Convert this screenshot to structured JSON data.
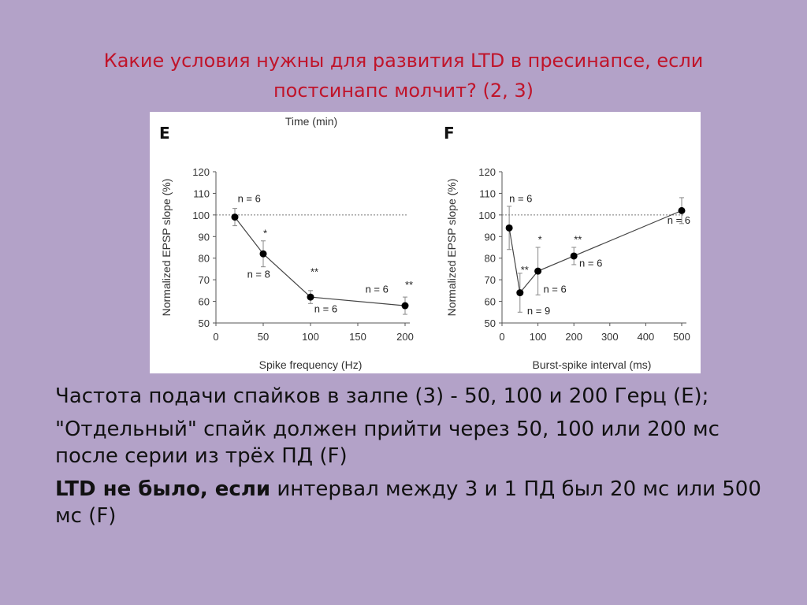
{
  "slide": {
    "title_line1": "Какие условия нужны для развития LTD в пресинапсе, если",
    "title_line2": "постсинапс молчит? (2, 3)",
    "paragraphs": [
      {
        "bold": "",
        "text": "Частота подачи спайков в залпе (3) - 50, 100 и 200 Герц (Е);"
      },
      {
        "bold": "",
        "text": "\"Отдельный\" спайк должен прийти через 50, 100 или 200 мс после серии из трёх ПД (F)"
      },
      {
        "bold": "LTD не было, если",
        "text": " интервал между 3 и 1 ПД был 20 мс или 500 мс (F)"
      }
    ],
    "title_color": "#c0142a",
    "background_color": "#b3a2c8"
  },
  "chart_data": [
    {
      "panel": "E",
      "type": "line",
      "top_label": "Time (min)",
      "xlabel": "Spike frequency (Hz)",
      "ylabel": "Normalized EPSP slope (%)",
      "xlim": [
        0,
        200
      ],
      "ylim": [
        50,
        120
      ],
      "xticks": [
        0,
        50,
        100,
        150,
        200
      ],
      "yticks": [
        50,
        60,
        70,
        80,
        90,
        100,
        110,
        120
      ],
      "reference_line": 100,
      "points": [
        {
          "x": 20,
          "y": 99,
          "err": 4
        },
        {
          "x": 50,
          "y": 82,
          "err": 6
        },
        {
          "x": 100,
          "y": 62,
          "err": 3
        },
        {
          "x": 200,
          "y": 58,
          "err": 4
        }
      ],
      "annotations": [
        {
          "text": "n = 6",
          "x": 23,
          "y": 106
        },
        {
          "text": "*",
          "x": 50,
          "y": 90
        },
        {
          "text": "n = 8",
          "x": 33,
          "y": 71
        },
        {
          "text": "**",
          "x": 100,
          "y": 72
        },
        {
          "text": "n = 6",
          "x": 104,
          "y": 55
        },
        {
          "text": "n = 6",
          "x": 158,
          "y": 64
        },
        {
          "text": "**",
          "x": 200,
          "y": 66
        }
      ]
    },
    {
      "panel": "F",
      "type": "line",
      "xlabel": "Burst-spike interval (ms)",
      "ylabel": "Normalized EPSP slope (%)",
      "xlim": [
        0,
        500
      ],
      "ylim": [
        50,
        120
      ],
      "xticks": [
        0,
        100,
        200,
        300,
        400,
        500
      ],
      "yticks": [
        50,
        60,
        70,
        80,
        90,
        100,
        110,
        120
      ],
      "reference_line": 100,
      "points": [
        {
          "x": 20,
          "y": 94,
          "err": 10
        },
        {
          "x": 50,
          "y": 64,
          "err": 9
        },
        {
          "x": 100,
          "y": 74,
          "err": 11
        },
        {
          "x": 200,
          "y": 81,
          "err": 4
        },
        {
          "x": 500,
          "y": 102,
          "err": 6
        }
      ],
      "annotations": [
        {
          "text": "n = 6",
          "x": 20,
          "y": 106
        },
        {
          "text": "**",
          "x": 52,
          "y": 73
        },
        {
          "text": "*",
          "x": 100,
          "y": 87
        },
        {
          "text": "n = 9",
          "x": 70,
          "y": 54
        },
        {
          "text": "n = 6",
          "x": 115,
          "y": 64
        },
        {
          "text": "**",
          "x": 200,
          "y": 87
        },
        {
          "text": "n = 6",
          "x": 215,
          "y": 76
        },
        {
          "text": "n = 6",
          "x": 460,
          "y": 96
        }
      ]
    }
  ]
}
